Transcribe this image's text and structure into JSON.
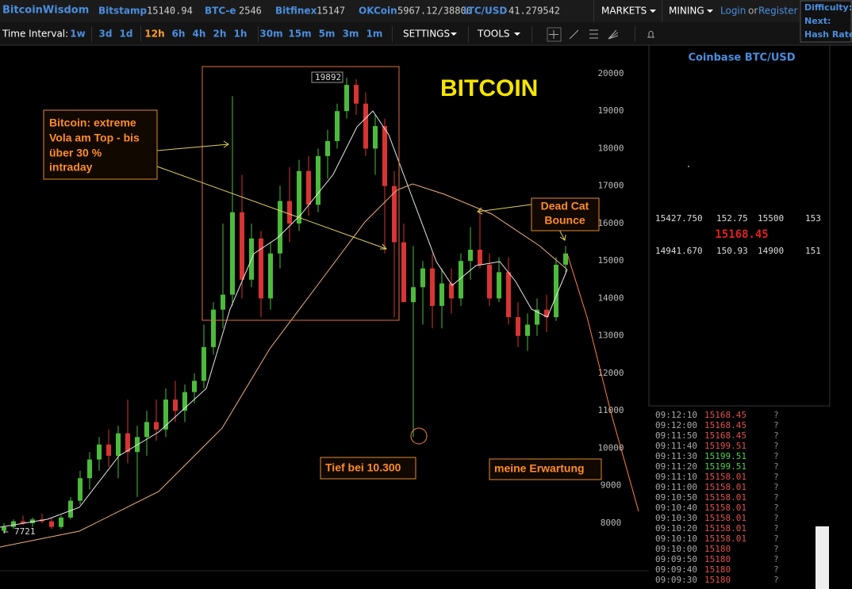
{
  "header": {
    "logo": "BitcoinWisdom",
    "tickers": [
      {
        "name": "Bitstamp",
        "price": "15140.94"
      },
      {
        "name": "BTC-e",
        "price": "2546"
      },
      {
        "name": "Bitfinex",
        "price": "15147"
      },
      {
        "name": "OKCoin",
        "price": "5967.12/38800"
      },
      {
        "name": "LTC/USD",
        "price": "41.279542"
      }
    ],
    "menu": [
      "MARKETS",
      "MINING"
    ],
    "login": "Login",
    "or": "or",
    "register": "Register",
    "difficulty": [
      "Difficulty:",
      "Next:",
      "Hash Rate:"
    ]
  },
  "toolbar": {
    "label": "Time Interval:",
    "intervals": [
      "1w",
      "3d",
      "1d",
      "12h",
      "6h",
      "4h",
      "2h",
      "1h",
      "30m",
      "15m",
      "5m",
      "3m",
      "1m"
    ],
    "active": "12h",
    "settings": "SETTINGS",
    "tools": "TOOLS"
  },
  "chart_data": {
    "type": "candlestick",
    "title": "BITCOIN",
    "ylim": [
      6730,
      20760
    ],
    "yticks": [
      8000,
      9000,
      10000,
      11000,
      12000,
      13000,
      14000,
      15000,
      16000,
      17000,
      18000,
      19000,
      20000
    ],
    "up_color": "#4cbb3c",
    "down_color": "#d83434",
    "open": [
      7800,
      7900,
      8050,
      8000,
      8100,
      8050,
      7900,
      8150,
      8600,
      9200,
      9700,
      10100,
      9800,
      10400,
      9900,
      10300,
      10700,
      10500,
      11300,
      11000,
      11500,
      11800,
      12700,
      13700,
      14100,
      16300,
      14500,
      15600,
      14000,
      15200,
      16600,
      16000,
      17400,
      16500,
      17800,
      18200,
      19000,
      19700,
      19200,
      18000,
      18600,
      17000,
      15500,
      13900,
      14300,
      14800,
      13800,
      14400,
      14000,
      15000,
      15300,
      14900,
      14000,
      14700,
      13500,
      13000,
      13300,
      13700,
      13500,
      14900
    ],
    "high": [
      8000,
      8100,
      8200,
      8150,
      8250,
      8150,
      8200,
      8700,
      9400,
      9900,
      10300,
      10500,
      10600,
      11300,
      10600,
      11000,
      11300,
      11600,
      11800,
      11700,
      12000,
      13300,
      13900,
      16000,
      19400,
      17300,
      16000,
      15800,
      15500,
      17000,
      17500,
      17700,
      17800,
      18000,
      18500,
      19200,
      19892,
      19850,
      19500,
      18900,
      18800,
      17400,
      16000,
      15400,
      15000,
      15200,
      14800,
      14800,
      15200,
      15900,
      16400,
      15200,
      15100,
      15100,
      13900,
      13600,
      14000,
      14100,
      15100,
      15400
    ],
    "low": [
      7721,
      7850,
      7950,
      7900,
      8000,
      7850,
      7850,
      8100,
      8500,
      8900,
      9400,
      9500,
      9200,
      9600,
      8700,
      9800,
      10200,
      10300,
      10700,
      10700,
      11200,
      11600,
      12500,
      13200,
      13800,
      14000,
      14300,
      13500,
      13700,
      14800,
      15500,
      15800,
      16200,
      16300,
      17200,
      18000,
      18800,
      18900,
      17800,
      17300,
      15200,
      13500,
      14000,
      10300,
      13300,
      13200,
      13200,
      13600,
      13800,
      14500,
      14800,
      13800,
      13900,
      13300,
      12700,
      12600,
      13000,
      13100,
      13400,
      14700
    ],
    "close": [
      7900,
      8050,
      8000,
      8100,
      8050,
      7900,
      8150,
      8600,
      9200,
      9700,
      10100,
      9800,
      10400,
      9900,
      10300,
      10700,
      10500,
      11300,
      11000,
      11500,
      11800,
      12700,
      13700,
      14100,
      16300,
      14500,
      15600,
      14000,
      15200,
      16600,
      16000,
      17400,
      16500,
      17800,
      18200,
      19000,
      19700,
      19200,
      18000,
      18600,
      17000,
      15500,
      13900,
      14300,
      14800,
      13800,
      14400,
      14000,
      15000,
      15300,
      14900,
      14000,
      14700,
      13500,
      13000,
      13300,
      13700,
      13500,
      14900,
      15200
    ],
    "high_label": "19892",
    "low_label": "7721",
    "annotations": [
      {
        "lines": [
          "Bitcoin: extreme",
          "Vola am Top - bis",
          "über 30 %",
          "intraday"
        ]
      },
      {
        "lines": [
          "Dead Cat",
          "Bounce"
        ]
      },
      {
        "lines": [
          "Tief bei 10.300"
        ]
      },
      {
        "lines": [
          "meine Erwartung"
        ]
      }
    ]
  },
  "sidebar": {
    "title": "Coinbase BTC/USD",
    "asks": [
      "15427.750",
      "152.75",
      "15500",
      "153"
    ],
    "last": "15168.45",
    "bids": [
      "14941.670",
      "150.93",
      "14900",
      "151"
    ],
    "trades": [
      {
        "time": "09:12:10",
        "price": "15168.45",
        "flag": "?",
        "color": "#e05050"
      },
      {
        "time": "09:12:00",
        "price": "15168.45",
        "flag": "?",
        "color": "#e05050"
      },
      {
        "time": "09:11:50",
        "price": "15168.45",
        "flag": "?",
        "color": "#e05050"
      },
      {
        "time": "09:11:40",
        "price": "15199.51",
        "flag": "?",
        "color": "#e05050"
      },
      {
        "time": "09:11:30",
        "price": "15199.51",
        "flag": "?",
        "color": "#50d050"
      },
      {
        "time": "09:11:20",
        "price": "15199.51",
        "flag": "?",
        "color": "#50d050"
      },
      {
        "time": "09:11:10",
        "price": "15158.01",
        "flag": "?",
        "color": "#e05050"
      },
      {
        "time": "09:11:00",
        "price": "15158.01",
        "flag": "?",
        "color": "#e05050"
      },
      {
        "time": "09:10:50",
        "price": "15158.01",
        "flag": "?",
        "color": "#e05050"
      },
      {
        "time": "09:10:40",
        "price": "15158.01",
        "flag": "?",
        "color": "#e05050"
      },
      {
        "time": "09:10:30",
        "price": "15158.01",
        "flag": "?",
        "color": "#e05050"
      },
      {
        "time": "09:10:20",
        "price": "15158.01",
        "flag": "?",
        "color": "#e05050"
      },
      {
        "time": "09:10:10",
        "price": "15158.01",
        "flag": "?",
        "color": "#e05050"
      },
      {
        "time": "09:10:00",
        "price": "15180",
        "flag": "?",
        "color": "#e05050"
      },
      {
        "time": "09:09:50",
        "price": "15180",
        "flag": "?",
        "color": "#e05050"
      },
      {
        "time": "09:09:40",
        "price": "15180",
        "flag": "?",
        "color": "#e05050"
      },
      {
        "time": "09:09:30",
        "price": "15180",
        "flag": "?",
        "color": "#e05050"
      }
    ]
  }
}
